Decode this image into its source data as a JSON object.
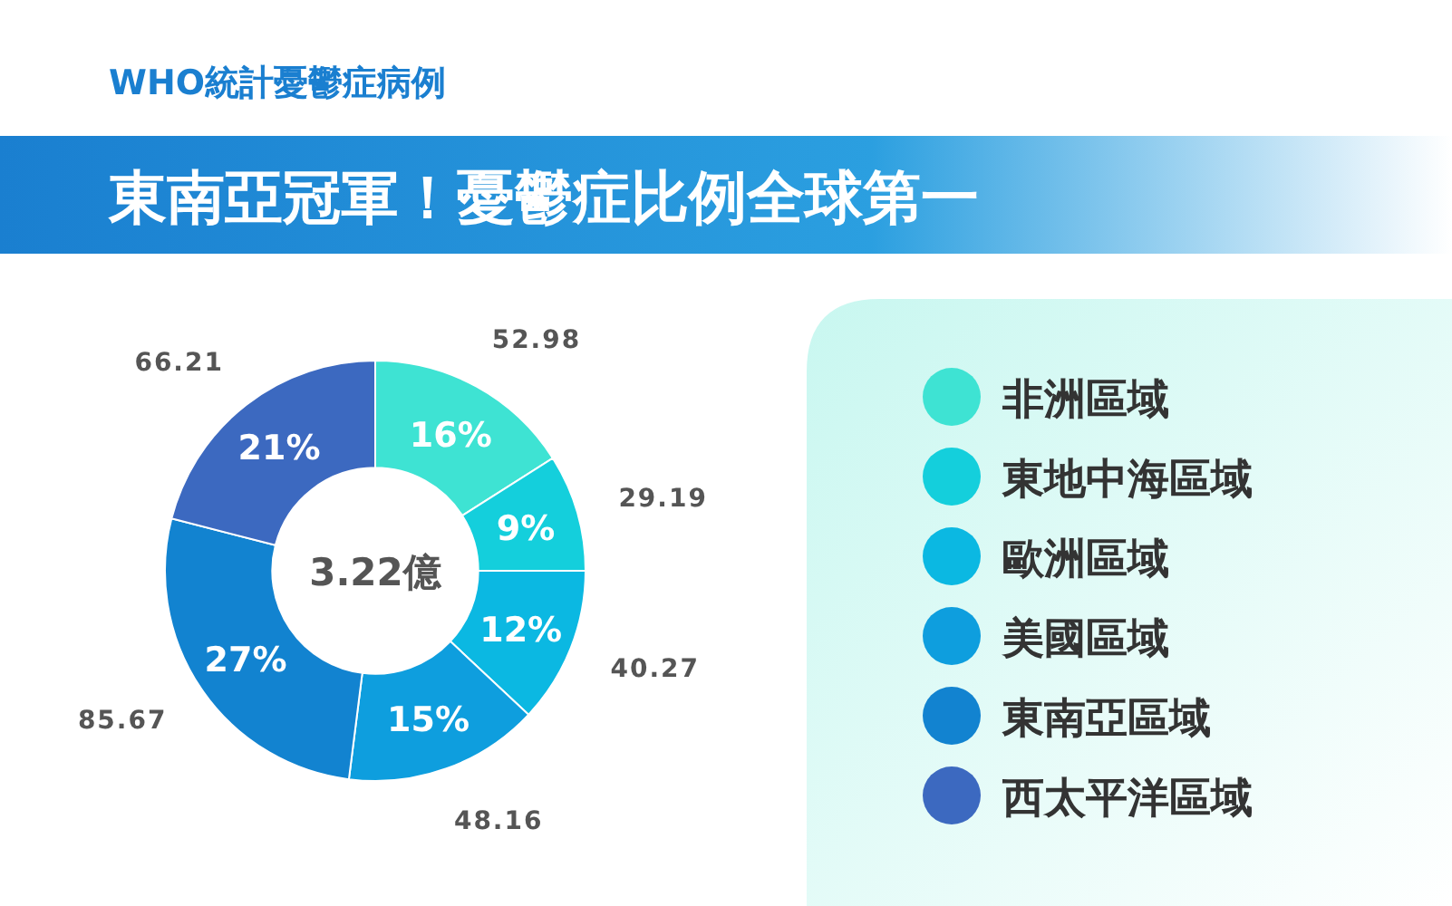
{
  "chart_data": {
    "type": "donut",
    "title": "東南亞冠軍！憂鬱症比例全球第一",
    "subtitle": "WHO統計憂鬱症病例",
    "categories": [
      "非洲區域",
      "東地中海區域",
      "歐洲區域",
      "美國區域",
      "東南亞區域",
      "西太平洋區域"
    ],
    "values": [
      16,
      9,
      12,
      15,
      27,
      21
    ],
    "colors": [
      "#3ee3d3",
      "#14cfdc",
      "#0bb8e2",
      "#0e9ede",
      "#1283d0",
      "#3c69c0"
    ],
    "value_labels": [
      "16%",
      "9%",
      "12%",
      "15%",
      "27%",
      "21%"
    ],
    "annotations": [
      "3.22億",
      {
        "text": "52.98",
        "x": "非洲區域"
      },
      {
        "text": "29.19",
        "x": "東地中海區域"
      },
      {
        "text": "40.27",
        "x": "歐洲區域"
      },
      {
        "text": "48.16",
        "x": "美國區域"
      },
      {
        "text": "85.67",
        "x": "東南亞區域"
      },
      {
        "text": "66.21",
        "x": "西太平洋區域"
      }
    ],
    "legend": "right"
  }
}
